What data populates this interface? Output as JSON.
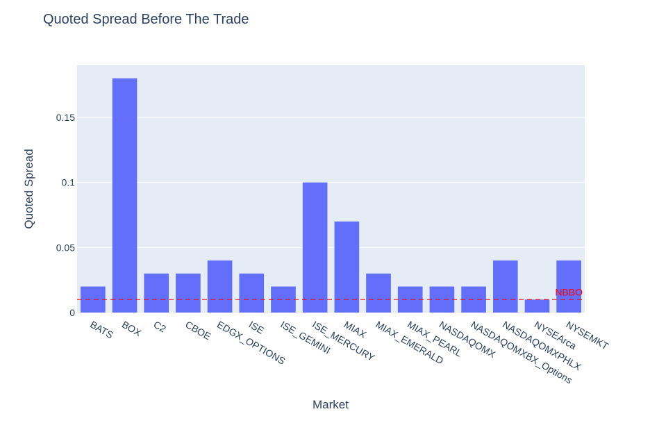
{
  "chart_data": {
    "type": "bar",
    "title": "Quoted Spread Before The Trade",
    "xlabel": "Market",
    "ylabel": "Quoted Spread",
    "categories": [
      "BATS",
      "BOX",
      "C2",
      "CBOE",
      "EDGX_OPTIONS",
      "ISE",
      "ISE_GEMINI",
      "ISE_MERCURY",
      "MIAX",
      "MIAX_EMERALD",
      "MIAX_PEARL",
      "NASDAQOMX",
      "NASDAQOMXBX_Options",
      "NASDAQOMXPHLX",
      "NYSEArca",
      "NYSEMKT"
    ],
    "values": [
      0.02,
      0.18,
      0.03,
      0.03,
      0.04,
      0.03,
      0.02,
      0.1,
      0.07,
      0.03,
      0.02,
      0.02,
      0.02,
      0.04,
      0.01,
      0.04
    ],
    "ylim": [
      0,
      0.19
    ],
    "yticks": [
      0,
      0.05,
      0.1,
      0.15
    ],
    "ytick_labels": [
      "0",
      "0.05",
      "0.1",
      "0.15"
    ],
    "grid": true,
    "bar_color": "#636efa",
    "plot_bg": "#e5ecf6",
    "reference_line": {
      "label": "NBBO",
      "value": 0.01,
      "color": "#ff0000",
      "style": "dashed"
    }
  }
}
